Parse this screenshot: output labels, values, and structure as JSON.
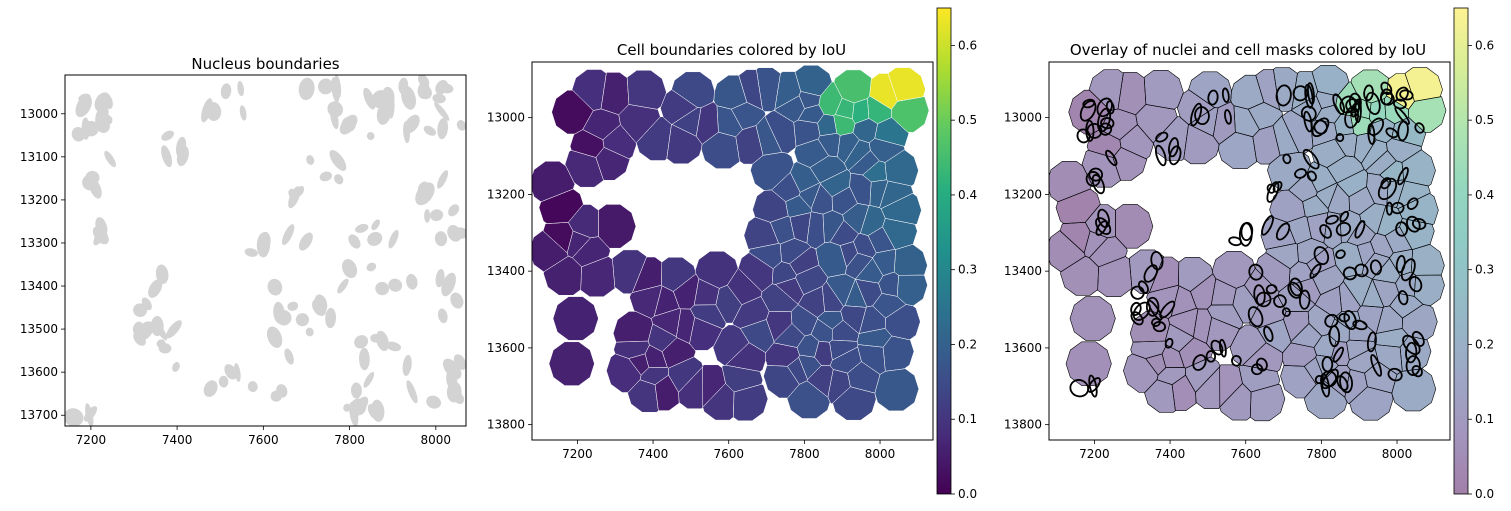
{
  "chart_data": [
    {
      "type": "scatter",
      "title": "Nucleus boundaries",
      "xlabel": "",
      "ylabel": "",
      "xlim": [
        7140,
        8070
      ],
      "ylim": [
        13725,
        12910
      ],
      "xticks": [
        7200,
        7400,
        7600,
        7800,
        8000
      ],
      "yticks": [
        13000,
        13100,
        13200,
        13300,
        13400,
        13500,
        13600,
        13700
      ],
      "xtick_labels": [
        "7200",
        "7400",
        "7600",
        "7800",
        "8000"
      ],
      "ytick_labels": [
        "13000",
        "13100",
        "13200",
        "13300",
        "13400",
        "13500",
        "13600",
        "13700"
      ],
      "fill_color": "#d3d3d3",
      "grid": false
    },
    {
      "type": "heatmap",
      "title": "Cell boundaries colored by IoU",
      "xlabel": "",
      "ylabel": "",
      "xlim": [
        7080,
        8140
      ],
      "ylim": [
        13840,
        12855
      ],
      "xticks": [
        7200,
        7400,
        7600,
        7800,
        8000
      ],
      "yticks": [
        13000,
        13200,
        13400,
        13600,
        13800
      ],
      "xtick_labels": [
        "7200",
        "7400",
        "7600",
        "7800",
        "8000"
      ],
      "ytick_labels": [
        "13000",
        "13200",
        "13400",
        "13600",
        "13800"
      ],
      "colormap": "viridis",
      "colorbar": {
        "range": [
          0,
          0.65
        ],
        "ticks": [
          "0.0",
          "0.1",
          "0.2",
          "0.3",
          "0.4",
          "0.5",
          "0.6"
        ]
      },
      "grid": false
    },
    {
      "type": "heatmap",
      "title": "Overlay of nuclei and cell masks colored by IoU",
      "xlabel": "",
      "ylabel": "",
      "xlim": [
        7080,
        8140
      ],
      "ylim": [
        13840,
        12855
      ],
      "xticks": [
        7200,
        7400,
        7600,
        7800,
        8000
      ],
      "yticks": [
        13000,
        13200,
        13400,
        13600,
        13800
      ],
      "xtick_labels": [
        "7200",
        "7400",
        "7600",
        "7800",
        "8000"
      ],
      "ytick_labels": [
        "13000",
        "13200",
        "13400",
        "13600",
        "13800"
      ],
      "colormap": "viridis",
      "alpha": 0.5,
      "nucleus_outline_color": "#000000",
      "colorbar": {
        "range": [
          0,
          0.65
        ],
        "ticks": [
          "0.0",
          "0.1",
          "0.2",
          "0.3",
          "0.4",
          "0.5",
          "0.6"
        ]
      },
      "grid": false
    }
  ]
}
